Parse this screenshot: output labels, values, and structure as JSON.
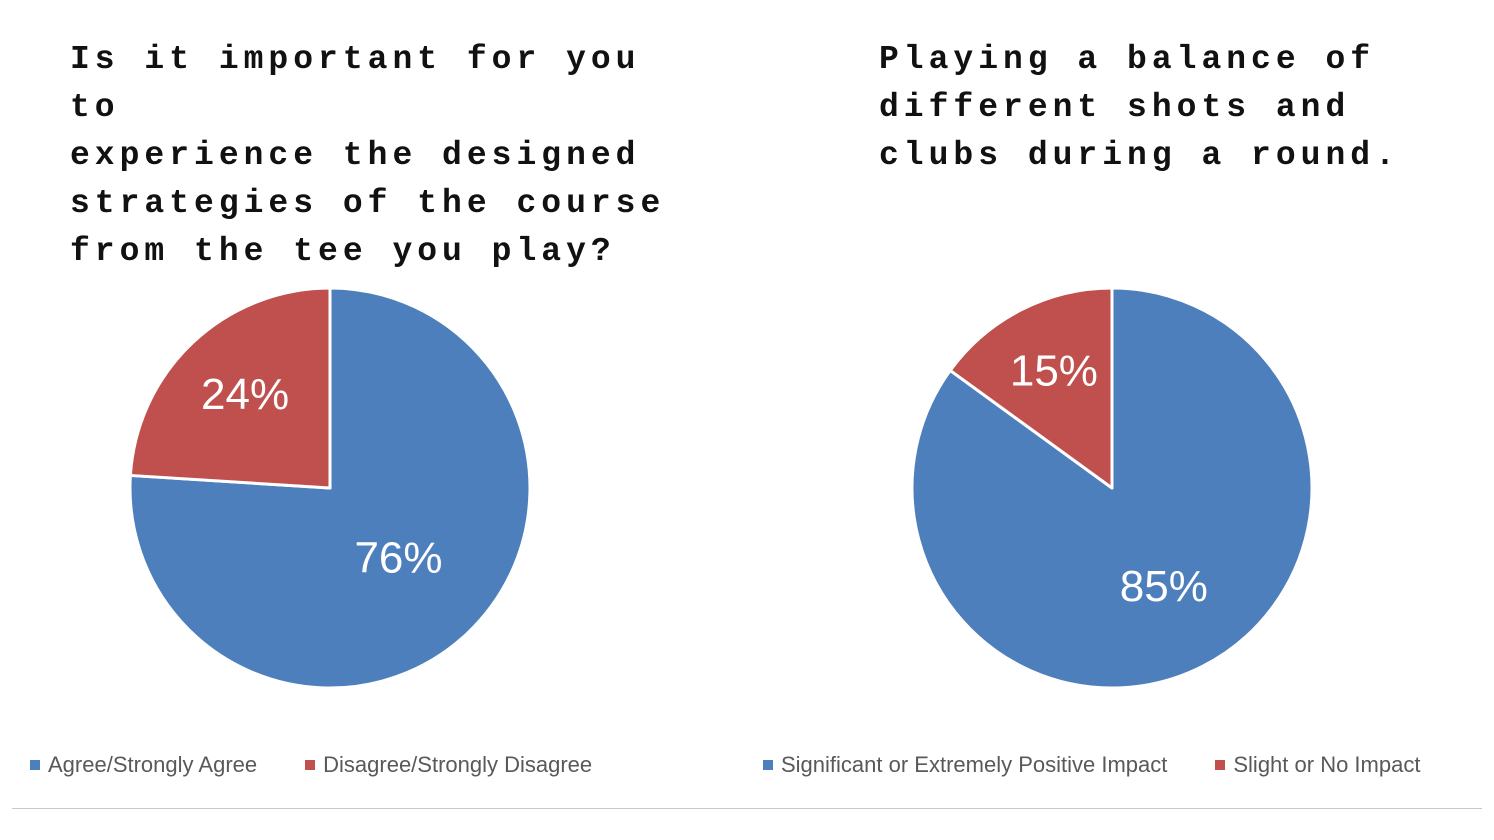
{
  "colors": {
    "blue": "#4e7fbd",
    "red": "#c0504d",
    "legend_text": "#595959"
  },
  "chart_data": [
    {
      "type": "pie",
      "title": "Is it important for you to experience the designed strategies of the course from the tee you play?",
      "title_lines": [
        "Is it important for you to",
        "experience the designed",
        "strategies of the course",
        "from the tee you play?"
      ],
      "slices": [
        {
          "label": "Agree/Strongly Agree",
          "value": 76,
          "display": "76%",
          "color": "#4e7fbd"
        },
        {
          "label": "Disagree/Strongly Disagree",
          "value": 24,
          "display": "24%",
          "color": "#c0504d"
        }
      ],
      "start_angle_deg": 0,
      "direction": "clockwise",
      "legend_position": "bottom"
    },
    {
      "type": "pie",
      "title": "Playing a balance of different shots and clubs during a round.",
      "title_lines": [
        "Playing a balance of",
        "different shots and",
        "clubs during a round."
      ],
      "slices": [
        {
          "label": "Significant or Extremely Positive Impact",
          "value": 85,
          "display": "85%",
          "color": "#4e7fbd"
        },
        {
          "label": "Slight or No Impact",
          "value": 15,
          "display": "15%",
          "color": "#c0504d"
        }
      ],
      "start_angle_deg": 0,
      "direction": "clockwise",
      "legend_position": "bottom"
    }
  ]
}
